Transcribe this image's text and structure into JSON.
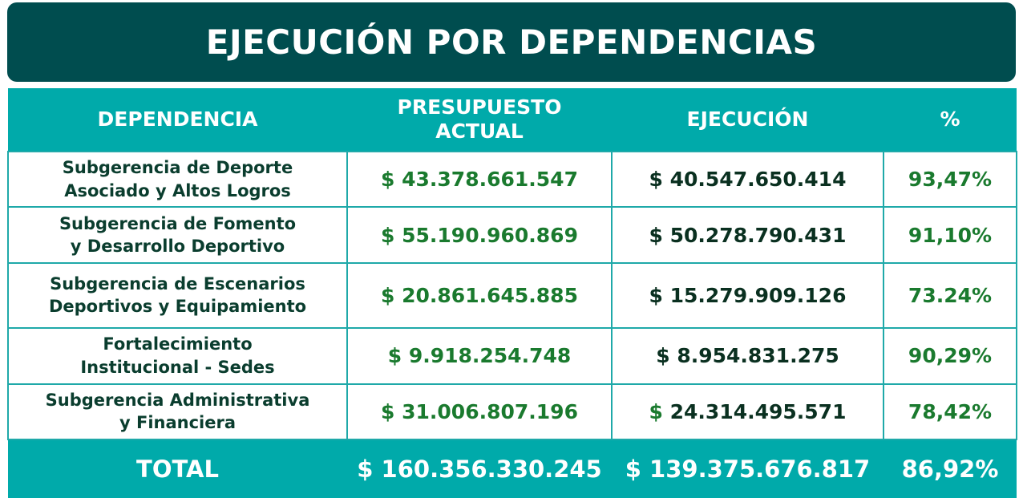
{
  "title": "EJECUCIÓN POR DEPENDENCIAS",
  "headers": {
    "dependencia": "DEPENDENCIA",
    "presupuesto": "PRESUPUESTO ACTUAL",
    "ejecucion": "EJECUCIÓN",
    "porcentaje": "%"
  },
  "rows": [
    {
      "dependencia_line1": "Subgerencia de Deporte",
      "dependencia_line2": "Asociado y Altos Logros",
      "presupuesto": "$ 43.378.661.547",
      "ejecucion": "$ 40.547.650.414",
      "porcentaje": "93,47%"
    },
    {
      "dependencia_line1": "Subgerencia de Fomento",
      "dependencia_line2": "y Desarrollo Deportivo",
      "presupuesto": "$ 55.190.960.869",
      "ejecucion": "$ 50.278.790.431",
      "porcentaje": "91,10%"
    },
    {
      "dependencia_line1": "Subgerencia de Escenarios",
      "dependencia_line2": "Deportivos y Equipamiento",
      "presupuesto": "$ 20.861.645.885",
      "ejecucion": "$ 15.279.909.126",
      "porcentaje": "73.24%"
    },
    {
      "dependencia_line1": "Fortalecimiento",
      "dependencia_line2": "Institucional - Sedes",
      "presupuesto": "$ 9.918.254.748",
      "ejecucion": "$ 8.954.831.275",
      "porcentaje": "90,29%"
    },
    {
      "dependencia_line1": "Subgerencia Administrativa",
      "dependencia_line2": "y Financiera",
      "presupuesto": "$ 31.006.807.196",
      "ejecucion_symbol": "$",
      "ejecucion_amount": "24.314.495.571",
      "porcentaje": "78,42%"
    }
  ],
  "total": {
    "label": "TOTAL",
    "presupuesto": "$ 160.356.330.245",
    "ejecucion": "$ 139.375.676.817",
    "porcentaje": "86,92%"
  },
  "colors": {
    "title_bg": "#004d4f",
    "header_bg": "#00aaaa",
    "border": "#1fa9a9",
    "green_text": "#1a7a2e",
    "dark_text": "#0a3020"
  }
}
